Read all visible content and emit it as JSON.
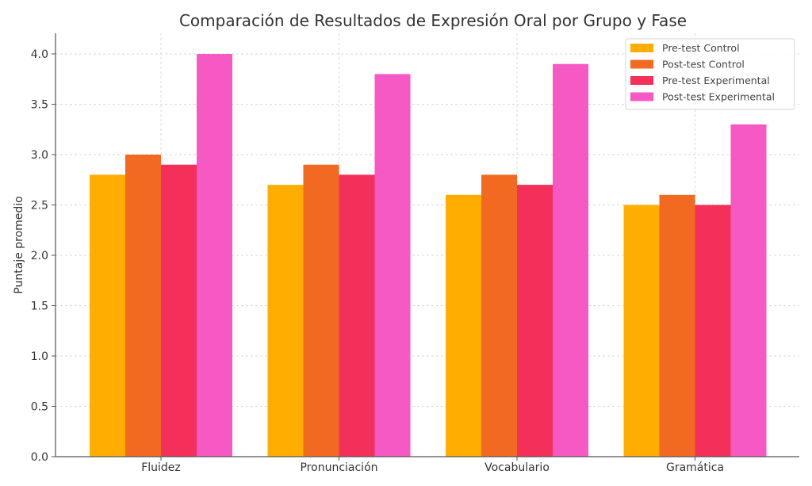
{
  "chart_data": {
    "type": "bar",
    "title": "Comparación de Resultados de Expresión Oral por Grupo y Fase",
    "xlabel": "",
    "ylabel": "Puntaje promedio",
    "ylim": [
      0,
      4.2
    ],
    "yticks": [
      "0.0",
      "0.5",
      "1.0",
      "1.5",
      "2.0",
      "2.5",
      "3.0",
      "3.5",
      "4.0"
    ],
    "grid": true,
    "legend_position": "top-right",
    "categories": [
      "Fluidez",
      "Pronunciación",
      "Vocabulario",
      "Gramática"
    ],
    "series": [
      {
        "name": "Pre-test Control",
        "color": "#FFAE00",
        "values": [
          2.8,
          2.7,
          2.6,
          2.5
        ]
      },
      {
        "name": "Post-test Control",
        "color": "#F26A22",
        "values": [
          3.0,
          2.9,
          2.8,
          2.6
        ]
      },
      {
        "name": "Pre-test Experimental",
        "color": "#F2305A",
        "values": [
          2.9,
          2.8,
          2.7,
          2.5
        ]
      },
      {
        "name": "Post-test Experimental",
        "color": "#F759C4",
        "values": [
          4.0,
          3.8,
          3.9,
          3.3
        ]
      }
    ]
  }
}
